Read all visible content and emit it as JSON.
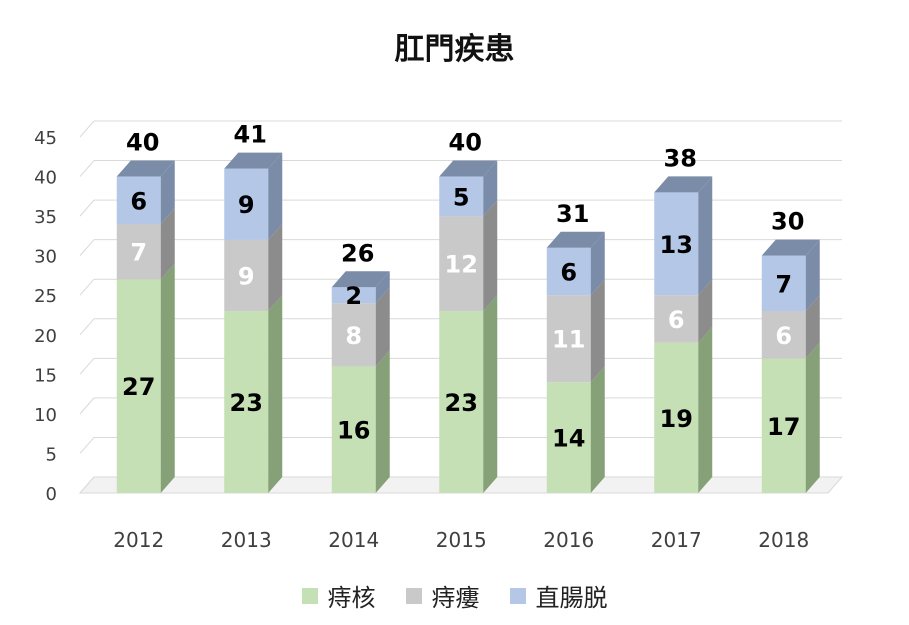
{
  "chart_data": {
    "type": "bar",
    "stacked": true,
    "style": "3d",
    "title": "肛門疾患",
    "categories": [
      "2012",
      "2013",
      "2014",
      "2015",
      "2016",
      "2017",
      "2018"
    ],
    "series": [
      {
        "name": "痔核",
        "values": [
          27,
          23,
          16,
          23,
          14,
          19,
          17
        ],
        "color": "#c5e0b4",
        "side_color": "#86a078",
        "label_color": "#000000"
      },
      {
        "name": "痔瘻",
        "values": [
          7,
          9,
          8,
          12,
          11,
          6,
          6
        ],
        "color": "#c9c9c9",
        "side_color": "#8c8c8c",
        "label_color": "#ffffff"
      },
      {
        "name": "直腸脱",
        "values": [
          6,
          9,
          2,
          5,
          6,
          13,
          7
        ],
        "color": "#b4c7e7",
        "side_color": "#7a8ca8",
        "label_color": "#000000"
      }
    ],
    "totals": [
      40,
      41,
      26,
      40,
      31,
      38,
      30
    ],
    "y_ticks": [
      "0",
      "5",
      "10",
      "15",
      "20",
      "25",
      "30",
      "35",
      "40",
      "45"
    ],
    "ylim": [
      0,
      45
    ],
    "grid": true,
    "legend_position": "bottom"
  }
}
